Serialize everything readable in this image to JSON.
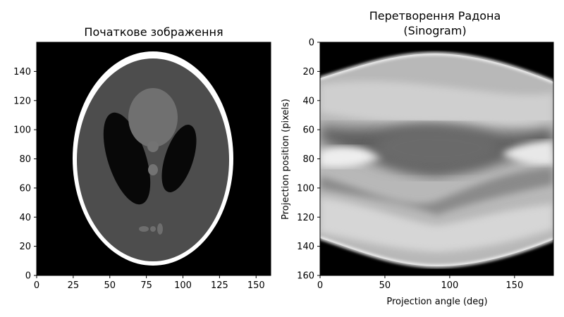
{
  "chart_data": [
    {
      "type": "heatmap",
      "title": "Початкове зображення",
      "xlabel": "",
      "ylabel": "",
      "xlim": [
        0,
        160
      ],
      "ylim": [
        160,
        0
      ],
      "xticks": [
        "0",
        "25",
        "50",
        "75",
        "100",
        "125",
        "150"
      ],
      "yticks": [
        "0",
        "20",
        "40",
        "60",
        "80",
        "100",
        "120",
        "140"
      ],
      "colormap": "gray",
      "content": "Shepp-Logan phantom"
    },
    {
      "type": "heatmap",
      "title_lines": [
        "Перетворення Радона",
        "(Sinogram)"
      ],
      "xlabel": "Projection angle (deg)",
      "ylabel": "Projection position (pixels)",
      "xlim": [
        0,
        180
      ],
      "ylim": [
        0,
        160
      ],
      "xticks": [
        "0",
        "50",
        "100",
        "150"
      ],
      "yticks": [
        "0",
        "20",
        "40",
        "60",
        "80",
        "100",
        "120",
        "140",
        "160"
      ],
      "colormap": "gray",
      "content": "Radon transform sinogram of phantom"
    }
  ]
}
